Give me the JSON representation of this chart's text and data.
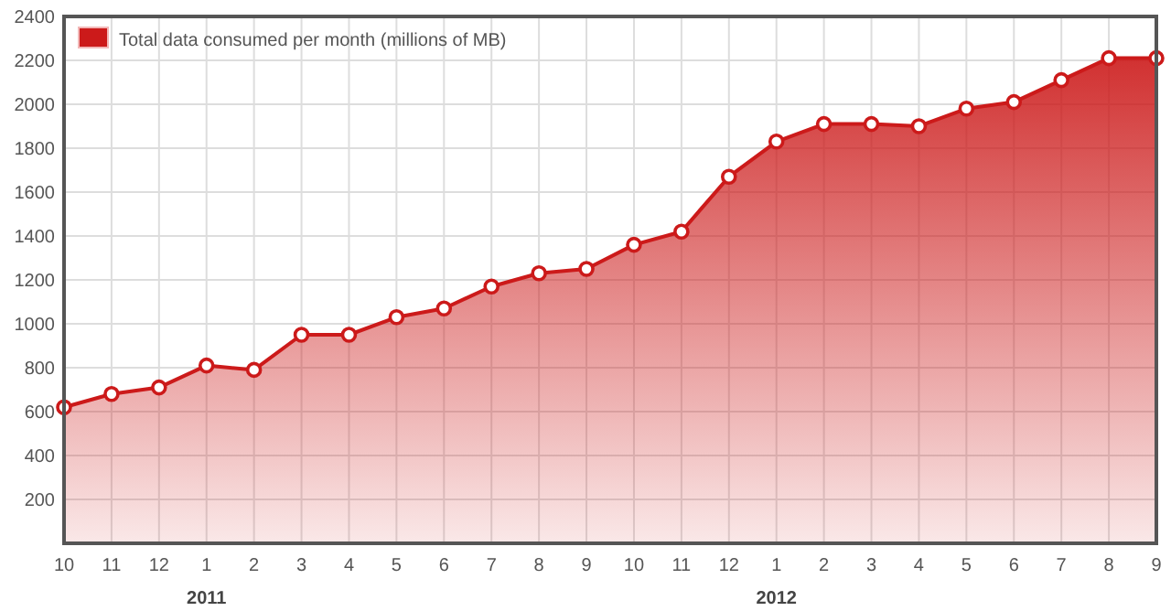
{
  "chart_data": {
    "type": "area",
    "categories": [
      "10",
      "11",
      "12",
      "1\n2011",
      "2",
      "3",
      "4",
      "5",
      "6",
      "7",
      "8",
      "9",
      "10",
      "11",
      "12",
      "1\n2012",
      "2",
      "3",
      "4",
      "5",
      "6",
      "7",
      "8",
      "9"
    ],
    "series": [
      {
        "name": "Total data consumed per month (millions of MB)",
        "color": "#cc1a1a",
        "values": [
          620,
          680,
          710,
          810,
          790,
          950,
          950,
          1030,
          1070,
          1170,
          1230,
          1250,
          1360,
          1420,
          1670,
          1830,
          1910,
          1910,
          1900,
          1980,
          2010,
          2110,
          2210,
          2210
        ]
      }
    ],
    "ylim": [
      0,
      2400
    ],
    "yticks": [
      200,
      400,
      600,
      800,
      1000,
      1200,
      1400,
      1600,
      1800,
      2000,
      2200,
      2400
    ],
    "grid": true,
    "legend": "top left",
    "marker": "circle"
  }
}
